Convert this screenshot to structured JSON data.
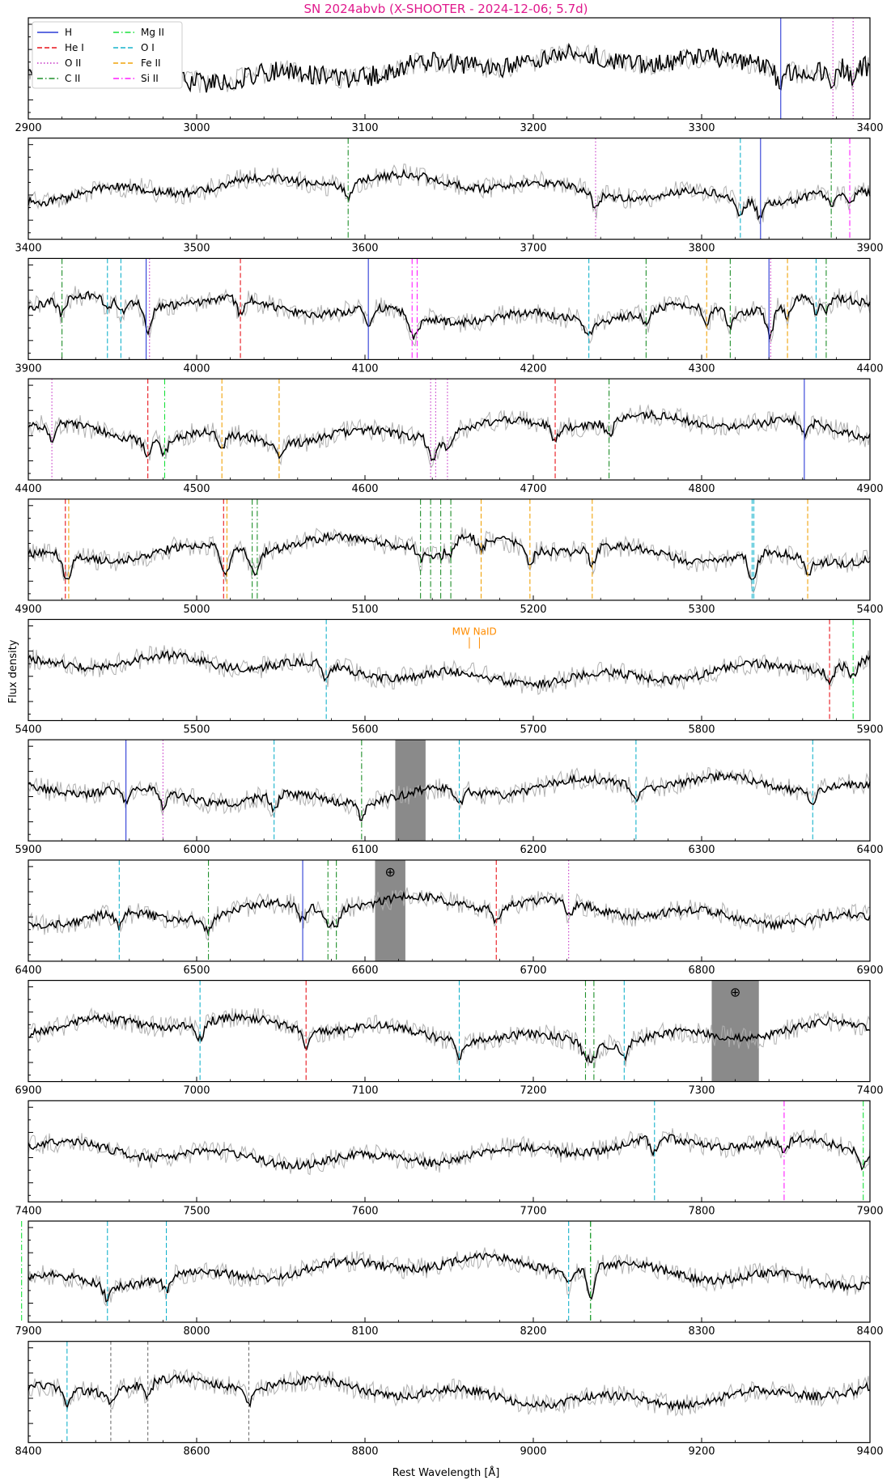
{
  "chart_data": {
    "type": "line",
    "title": "SN 2024abvb (X-SHOOTER - 2024-12-06; 5.7d)",
    "xlabel": "Rest Wavelength [Å]",
    "ylabel": "Flux density",
    "colors": {
      "title": "#e0198c",
      "spectrum": "#000000",
      "raw": "#b0b0b0",
      "telluric": "#8a8a8a",
      "nad": "#ff8c00"
    },
    "legend": {
      "placement": "top-left",
      "entries": [
        {
          "label": "H",
          "color": "#2b3bd6",
          "dash": "solid"
        },
        {
          "label": "He I",
          "color": "#e8141b",
          "dash": "dashed"
        },
        {
          "label": "O II",
          "color": "#c533c5",
          "dash": "dotted"
        },
        {
          "label": "C II",
          "color": "#1f8f2a",
          "dash": "dashdot"
        },
        {
          "label": "Mg II",
          "color": "#19e03b",
          "dash": "dashdot"
        },
        {
          "label": "O I",
          "color": "#17b3cc",
          "dash": "dashed"
        },
        {
          "label": "Fe II",
          "color": "#f0a30a",
          "dash": "dashed"
        },
        {
          "label": "Si II",
          "color": "#ff1dff",
          "dash": "dashdot"
        }
      ]
    },
    "panels": [
      {
        "xlim": [
          2900,
          3400
        ],
        "ticks": [
          2900,
          3000,
          3100,
          3200,
          3300,
          3400
        ],
        "lines": {
          "H": [
            3347
          ],
          "O II": [
            3378,
            3390
          ]
        }
      },
      {
        "xlim": [
          3400,
          3900
        ],
        "ticks": [
          3400,
          3500,
          3600,
          3700,
          3800,
          3900
        ],
        "lines": {
          "C II": [
            3590,
            3877
          ],
          "O II": [
            3737
          ],
          "O I": [
            3823
          ],
          "H": [
            3835
          ],
          "Si II": [
            3888
          ]
        }
      },
      {
        "xlim": [
          3900,
          4400
        ],
        "ticks": [
          3900,
          4000,
          4100,
          4200,
          4300,
          4400
        ],
        "lines": {
          "C II": [
            3920,
            4267,
            4317,
            4374
          ],
          "O I": [
            3947,
            3955,
            4233,
            4368
          ],
          "H": [
            3970,
            4102,
            4340
          ],
          "O II": [
            3972,
            4341
          ],
          "He I": [
            4026
          ],
          "Si II": [
            4128,
            4131
          ],
          "Fe II": [
            4303,
            4351
          ]
        }
      },
      {
        "xlim": [
          4400,
          4900
        ],
        "ticks": [
          4400,
          4500,
          4600,
          4700,
          4800,
          4900
        ],
        "lines": {
          "O II": [
            4414,
            4639,
            4642,
            4649
          ],
          "He I": [
            4471,
            4713
          ],
          "Mg II": [
            4481
          ],
          "Fe II": [
            4515,
            4549
          ],
          "C II": [
            4745
          ],
          "H": [
            4861
          ]
        }
      },
      {
        "xlim": [
          4900,
          5400
        ],
        "ticks": [
          4900,
          5000,
          5100,
          5200,
          5300,
          5400
        ],
        "lines": {
          "He I": [
            4922,
            5016
          ],
          "Fe II": [
            4924,
            5018,
            5169,
            5198,
            5235,
            5363
          ],
          "C II": [
            5033,
            5036,
            5133,
            5139,
            5145,
            5151
          ],
          "O I": [
            5330,
            5331
          ]
        }
      },
      {
        "xlim": [
          5400,
          5900
        ],
        "ticks": [
          5400,
          5500,
          5600,
          5700,
          5800,
          5900
        ],
        "lines": {
          "O I": [
            5577
          ],
          "He I": [
            5876
          ],
          "Mg II": [
            5890
          ]
        },
        "markers": [
          {
            "text": "MW NaID",
            "x": [
              5662,
              5668
            ]
          }
        ]
      },
      {
        "xlim": [
          5900,
          6400
        ],
        "ticks": [
          5900,
          6000,
          6100,
          6200,
          6300,
          6400
        ],
        "lines": {
          "H": [
            5958
          ],
          "O II": [
            5980
          ],
          "O I": [
            6046,
            6156,
            6261,
            6366
          ],
          "C II": [
            6098
          ]
        },
        "bands": [
          {
            "x": [
              6118,
              6136
            ]
          }
        ]
      },
      {
        "xlim": [
          6400,
          6900
        ],
        "ticks": [
          6400,
          6500,
          6600,
          6700,
          6800,
          6900
        ],
        "lines": {
          "O I": [
            6454
          ],
          "C II": [
            6507,
            6578,
            6583
          ],
          "H": [
            6563
          ],
          "He I": [
            6678
          ],
          "O II": [
            6721
          ]
        },
        "bands": [
          {
            "x": [
              6606,
              6624
            ],
            "label": "⊕"
          }
        ]
      },
      {
        "xlim": [
          6900,
          7400
        ],
        "ticks": [
          6900,
          7000,
          7100,
          7200,
          7300,
          7400
        ],
        "lines": {
          "O I": [
            7002,
            7156,
            7254
          ],
          "He I": [
            7065
          ],
          "C II": [
            7231,
            7236
          ]
        },
        "bands": [
          {
            "x": [
              7306,
              7334
            ],
            "label": "⊕"
          }
        ]
      },
      {
        "xlim": [
          7400,
          7900
        ],
        "ticks": [
          7400,
          7500,
          7600,
          7700,
          7800,
          7900
        ],
        "lines": {
          "O I": [
            7772
          ],
          "Si II": [
            7849
          ],
          "Mg II": [
            7896
          ]
        }
      },
      {
        "xlim": [
          7900,
          8400
        ],
        "ticks": [
          7900,
          8000,
          8100,
          8200,
          8300,
          8400
        ],
        "lines": {
          "Mg II": [
            7896,
            8234
          ],
          "O I": [
            7947,
            7982,
            8221
          ],
          "C II": [
            8234
          ]
        }
      },
      {
        "xlim": [
          8400,
          9400
        ],
        "ticks": [
          8400,
          8600,
          8800,
          9000,
          9200,
          9400
        ],
        "lines": {
          "O I": [
            8446
          ],
          "Ca II": [
            8498,
            8542,
            8662
          ]
        }
      }
    ]
  }
}
